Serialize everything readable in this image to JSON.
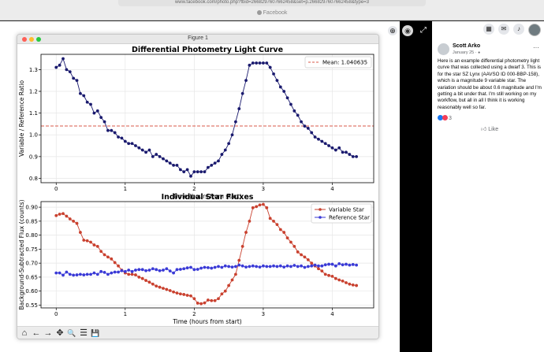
{
  "browser": {
    "url": "www.facebook.com/photo.php?fbid=2668297607662458&set=p.2668297607662458&type=3",
    "tab_title": "Facebook"
  },
  "window": {
    "title": "Figure 1"
  },
  "icons": {
    "zoom": "zoom-in-icon",
    "tag": "tag-icon",
    "expand": "expand-icon",
    "menu": "menu-grid-icon",
    "messenger": "messenger-icon",
    "notifications": "bell-icon"
  },
  "post": {
    "author": "Scott Arko",
    "date": "January 25 · ",
    "more": "···",
    "text": "Here is an example differential photometry light curve that was collected using a dwarf 3. This is for the star SZ Lynx (AAVSO ID 000-BBP-158), which is a magnitude 9 variable star. The variation should be about 0.6 magnitude and I'm getting a bit under that. I'm still working on my workflow, but all in all I think it is working reasonably well so far.",
    "reaction_count": "3",
    "like_label": "Like"
  },
  "toolbar": {
    "home": "⌂",
    "back": "←",
    "forward": "→",
    "pan": "✥",
    "zoom": "🔍",
    "configure": "☰",
    "save": "💾"
  },
  "chart_data": [
    {
      "type": "line",
      "title": "Differential Photometry Light Curve",
      "xlabel": "Time (hours from start)",
      "ylabel": "Variable / Reference Ratio",
      "xlim": [
        -0.22,
        4.6
      ],
      "ylim": [
        0.78,
        1.37
      ],
      "xticks": [
        0,
        1,
        2,
        3,
        4
      ],
      "yticks": [
        0.8,
        0.9,
        1.0,
        1.1,
        1.2,
        1.3
      ],
      "legend": "top-right",
      "mean_line": {
        "label": "Mean: 1.040635",
        "value": 1.040635,
        "color": "#d9584a"
      },
      "series": [
        {
          "color": "#1a1a6e",
          "x": [
            0.0,
            0.05,
            0.1,
            0.15,
            0.2,
            0.25,
            0.3,
            0.35,
            0.4,
            0.45,
            0.5,
            0.55,
            0.6,
            0.65,
            0.7,
            0.75,
            0.8,
            0.85,
            0.9,
            0.95,
            1.0,
            1.05,
            1.1,
            1.15,
            1.2,
            1.25,
            1.3,
            1.35,
            1.4,
            1.45,
            1.5,
            1.55,
            1.6,
            1.65,
            1.7,
            1.75,
            1.8,
            1.85,
            1.9,
            1.95,
            2.0,
            2.05,
            2.1,
            2.15,
            2.2,
            2.25,
            2.3,
            2.35,
            2.4,
            2.45,
            2.5,
            2.55,
            2.6,
            2.65,
            2.7,
            2.75,
            2.8,
            2.85,
            2.9,
            2.95,
            3.0,
            3.05,
            3.1,
            3.15,
            3.2,
            3.25,
            3.3,
            3.35,
            3.4,
            3.45,
            3.5,
            3.55,
            3.6,
            3.65,
            3.7,
            3.75,
            3.8,
            3.85,
            3.9,
            3.95,
            4.0,
            4.05,
            4.1,
            4.15,
            4.2,
            4.25,
            4.3,
            4.35
          ],
          "y": [
            1.31,
            1.32,
            1.35,
            1.3,
            1.29,
            1.26,
            1.25,
            1.19,
            1.18,
            1.15,
            1.14,
            1.1,
            1.11,
            1.08,
            1.06,
            1.02,
            1.02,
            1.01,
            0.99,
            0.985,
            0.97,
            0.96,
            0.96,
            0.95,
            0.94,
            0.93,
            0.92,
            0.93,
            0.9,
            0.91,
            0.9,
            0.89,
            0.88,
            0.87,
            0.86,
            0.86,
            0.84,
            0.83,
            0.84,
            0.81,
            0.83,
            0.83,
            0.83,
            0.83,
            0.85,
            0.86,
            0.87,
            0.88,
            0.91,
            0.93,
            0.96,
            1.0,
            1.06,
            1.12,
            1.19,
            1.25,
            1.32,
            1.33,
            1.33,
            1.33,
            1.33,
            1.33,
            1.31,
            1.28,
            1.25,
            1.22,
            1.2,
            1.17,
            1.14,
            1.11,
            1.09,
            1.06,
            1.04,
            1.03,
            1.01,
            0.99,
            0.98,
            0.97,
            0.96,
            0.95,
            0.94,
            0.93,
            0.94,
            0.92,
            0.92,
            0.91,
            0.9,
            0.9
          ]
        }
      ]
    },
    {
      "type": "line",
      "title": "Individual Star Fluxes",
      "xlabel": "Time (hours from start)",
      "ylabel": "Background-Subtracted Flux (counts)",
      "xlim": [
        -0.22,
        4.6
      ],
      "ylim": [
        0.54,
        0.92
      ],
      "xticks": [
        0,
        1,
        2,
        3,
        4
      ],
      "yticks": [
        0.55,
        0.6,
        0.65,
        0.7,
        0.75,
        0.8,
        0.85,
        0.9
      ],
      "legend": "top-right",
      "series": [
        {
          "name": "Variable Star",
          "color": "#c9412f",
          "x": [
            0.0,
            0.05,
            0.1,
            0.15,
            0.2,
            0.25,
            0.3,
            0.35,
            0.4,
            0.45,
            0.5,
            0.55,
            0.6,
            0.65,
            0.7,
            0.75,
            0.8,
            0.85,
            0.9,
            0.95,
            1.0,
            1.05,
            1.1,
            1.15,
            1.2,
            1.25,
            1.3,
            1.35,
            1.4,
            1.45,
            1.5,
            1.55,
            1.6,
            1.65,
            1.7,
            1.75,
            1.8,
            1.85,
            1.9,
            1.95,
            2.0,
            2.05,
            2.1,
            2.15,
            2.2,
            2.25,
            2.3,
            2.35,
            2.4,
            2.45,
            2.5,
            2.55,
            2.6,
            2.65,
            2.7,
            2.75,
            2.8,
            2.85,
            2.9,
            2.95,
            3.0,
            3.05,
            3.1,
            3.15,
            3.2,
            3.25,
            3.3,
            3.35,
            3.4,
            3.45,
            3.5,
            3.55,
            3.6,
            3.65,
            3.7,
            3.75,
            3.8,
            3.85,
            3.9,
            3.95,
            4.0,
            4.05,
            4.1,
            4.15,
            4.2,
            4.25,
            4.3,
            4.35
          ],
          "y": [
            0.87,
            0.875,
            0.877,
            0.868,
            0.858,
            0.85,
            0.842,
            0.81,
            0.782,
            0.78,
            0.775,
            0.765,
            0.76,
            0.742,
            0.73,
            0.722,
            0.715,
            0.702,
            0.69,
            0.675,
            0.665,
            0.66,
            0.66,
            0.658,
            0.65,
            0.645,
            0.638,
            0.632,
            0.625,
            0.618,
            0.614,
            0.61,
            0.606,
            0.602,
            0.597,
            0.593,
            0.59,
            0.588,
            0.585,
            0.583,
            0.573,
            0.557,
            0.555,
            0.558,
            0.568,
            0.566,
            0.566,
            0.573,
            0.59,
            0.6,
            0.62,
            0.64,
            0.66,
            0.71,
            0.76,
            0.81,
            0.85,
            0.898,
            0.902,
            0.908,
            0.91,
            0.898,
            0.86,
            0.85,
            0.838,
            0.82,
            0.81,
            0.79,
            0.775,
            0.76,
            0.74,
            0.73,
            0.722,
            0.712,
            0.7,
            0.69,
            0.68,
            0.672,
            0.66,
            0.656,
            0.653,
            0.645,
            0.64,
            0.636,
            0.63,
            0.625,
            0.622,
            0.62
          ]
        },
        {
          "name": "Reference Star",
          "color": "#3a3ad6",
          "x": [
            0.0,
            0.05,
            0.1,
            0.15,
            0.2,
            0.25,
            0.3,
            0.35,
            0.4,
            0.45,
            0.5,
            0.55,
            0.6,
            0.65,
            0.7,
            0.75,
            0.8,
            0.85,
            0.9,
            0.95,
            1.0,
            1.05,
            1.1,
            1.15,
            1.2,
            1.25,
            1.3,
            1.35,
            1.4,
            1.45,
            1.5,
            1.55,
            1.6,
            1.65,
            1.7,
            1.75,
            1.8,
            1.85,
            1.9,
            1.95,
            2.0,
            2.05,
            2.1,
            2.15,
            2.2,
            2.25,
            2.3,
            2.35,
            2.4,
            2.45,
            2.5,
            2.55,
            2.6,
            2.65,
            2.7,
            2.75,
            2.8,
            2.85,
            2.9,
            2.95,
            3.0,
            3.05,
            3.1,
            3.15,
            3.2,
            3.25,
            3.3,
            3.35,
            3.4,
            3.45,
            3.5,
            3.55,
            3.6,
            3.65,
            3.7,
            3.75,
            3.8,
            3.85,
            3.9,
            3.95,
            4.0,
            4.05,
            4.1,
            4.15,
            4.2,
            4.25,
            4.3,
            4.35
          ],
          "y": [
            0.665,
            0.665,
            0.657,
            0.668,
            0.66,
            0.657,
            0.658,
            0.66,
            0.658,
            0.66,
            0.66,
            0.665,
            0.66,
            0.67,
            0.667,
            0.66,
            0.665,
            0.668,
            0.668,
            0.673,
            0.67,
            0.675,
            0.67,
            0.675,
            0.677,
            0.677,
            0.673,
            0.675,
            0.68,
            0.677,
            0.673,
            0.675,
            0.68,
            0.672,
            0.665,
            0.677,
            0.678,
            0.68,
            0.683,
            0.685,
            0.677,
            0.678,
            0.682,
            0.685,
            0.684,
            0.682,
            0.685,
            0.688,
            0.685,
            0.69,
            0.688,
            0.686,
            0.688,
            0.693,
            0.69,
            0.686,
            0.688,
            0.69,
            0.688,
            0.686,
            0.69,
            0.688,
            0.688,
            0.69,
            0.688,
            0.69,
            0.686,
            0.69,
            0.688,
            0.692,
            0.688,
            0.69,
            0.685,
            0.688,
            0.69,
            0.693,
            0.69,
            0.69,
            0.694,
            0.696,
            0.696,
            0.69,
            0.698,
            0.694,
            0.696,
            0.693,
            0.695,
            0.693
          ]
        }
      ]
    }
  ]
}
